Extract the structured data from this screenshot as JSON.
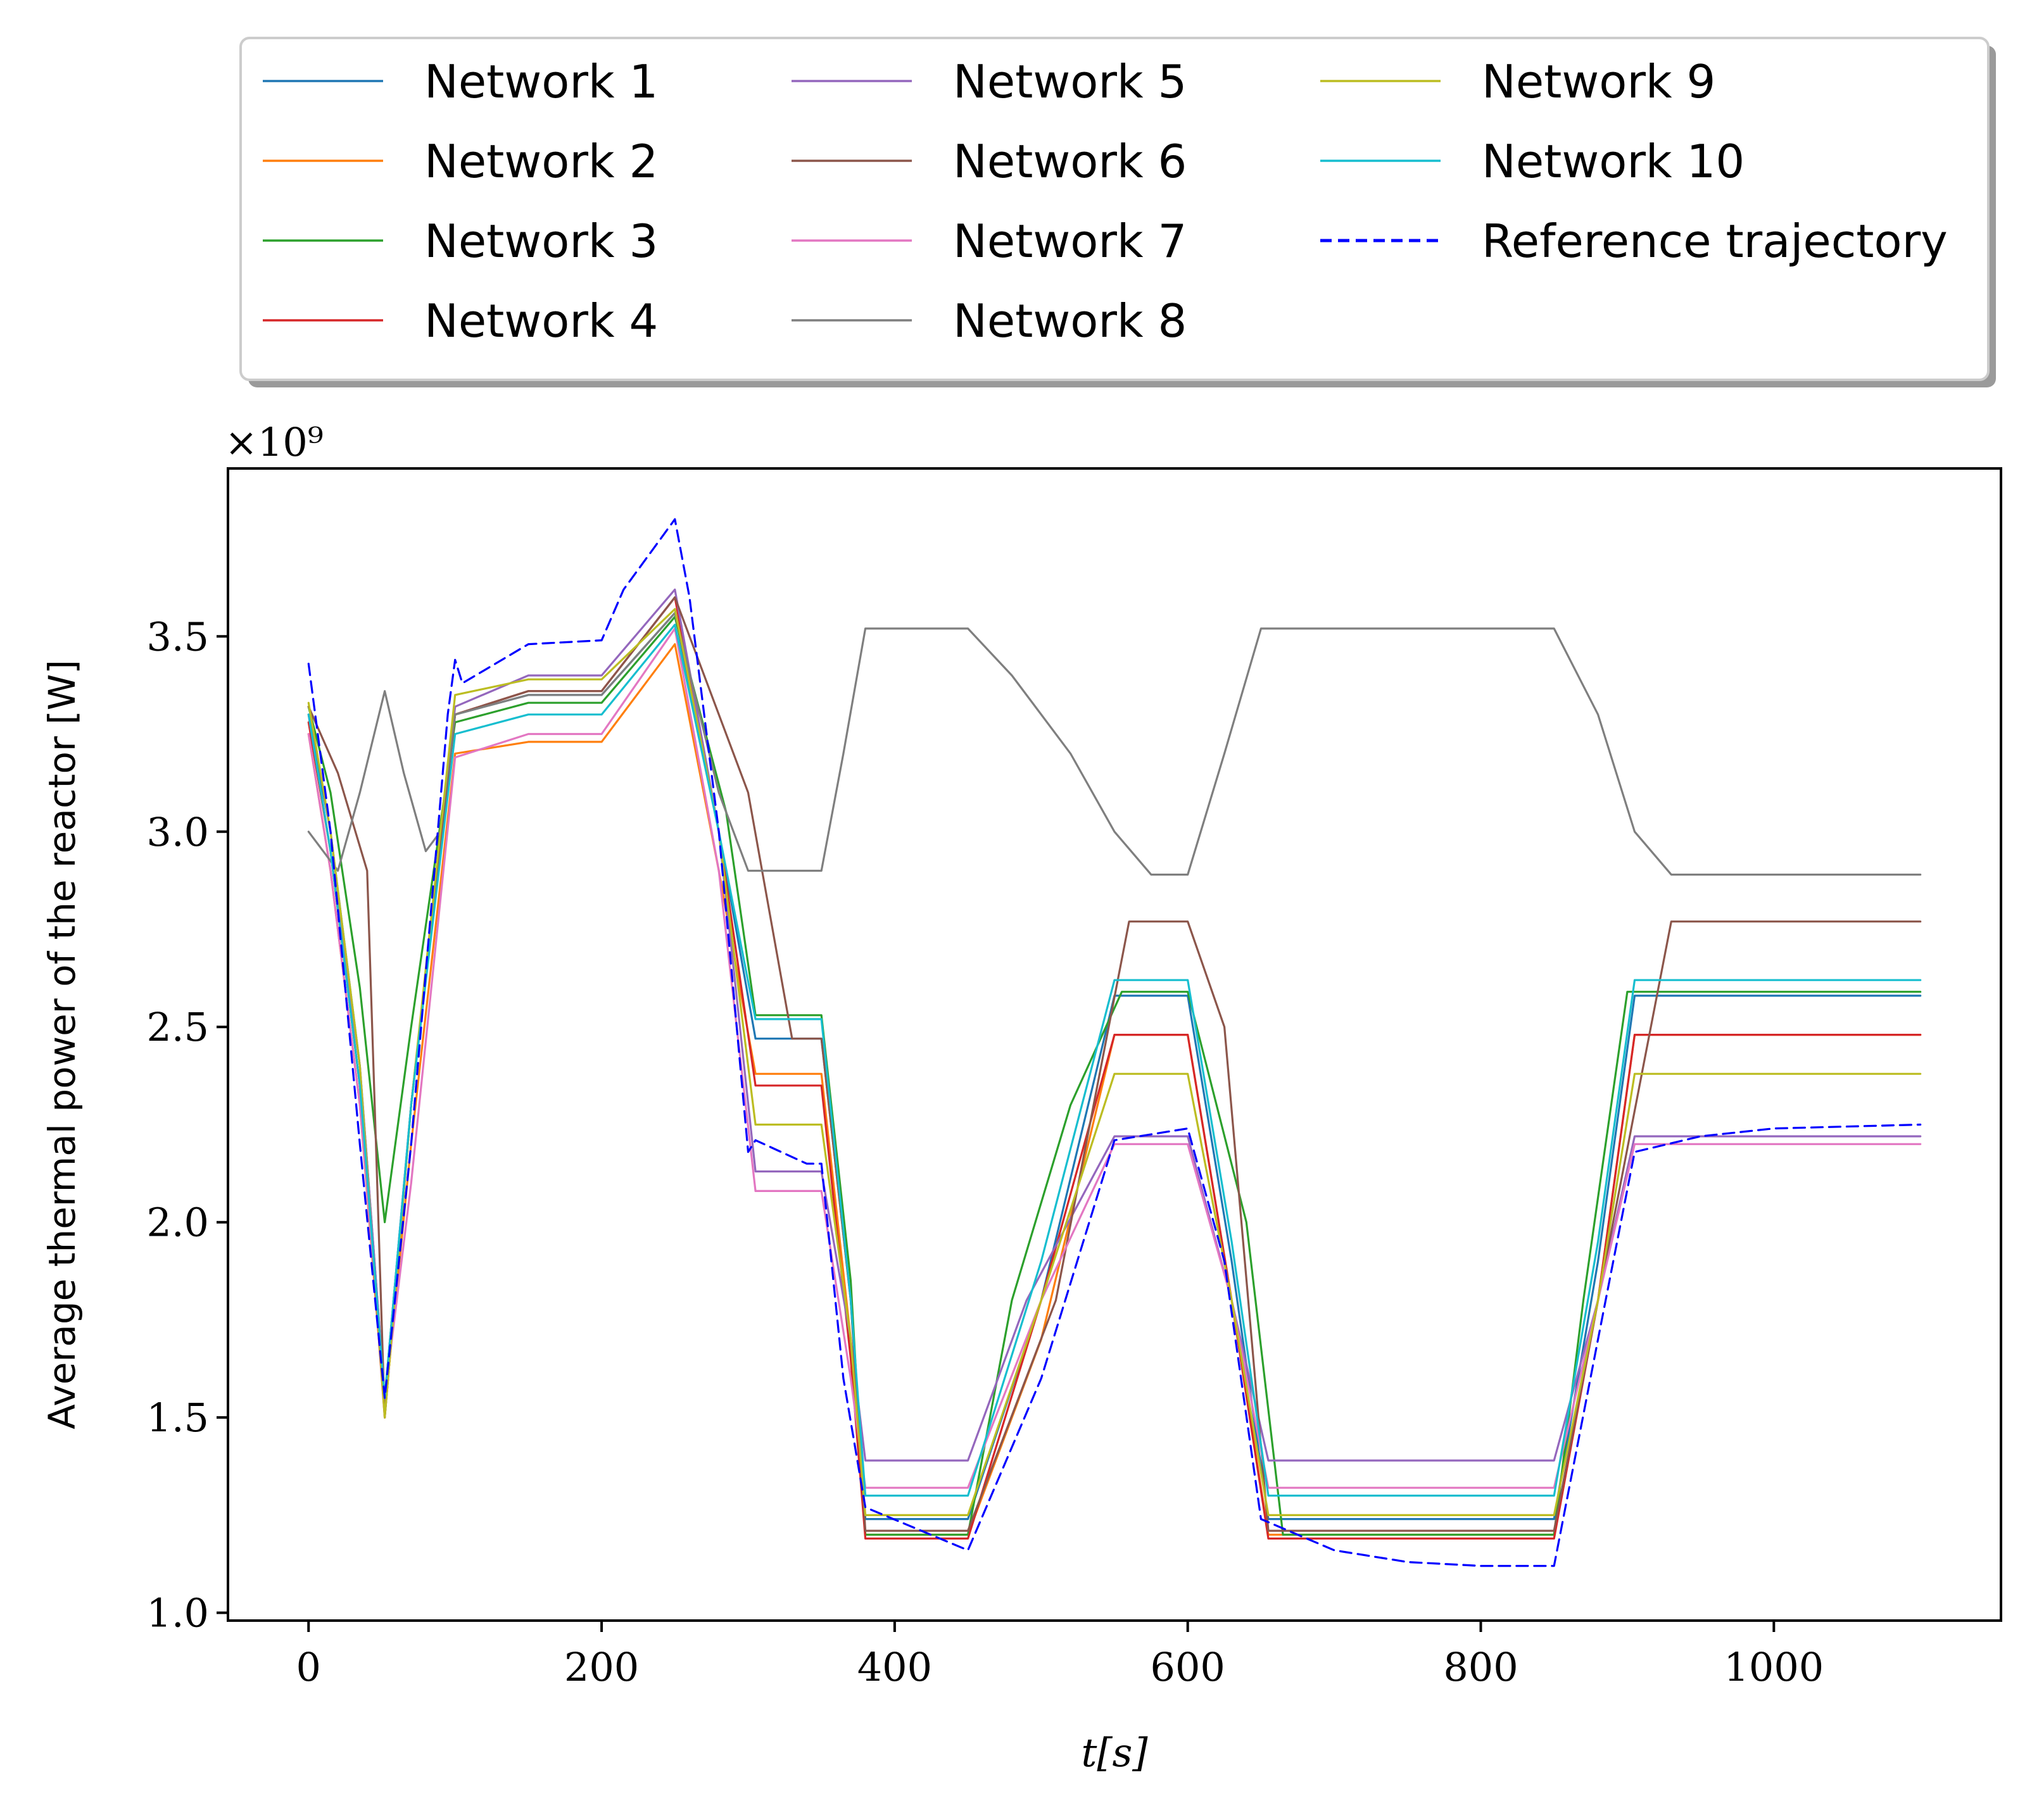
{
  "chart_data": {
    "type": "line",
    "xlabel": "t[s]",
    "ylabel": "Average thermal power of the reactor [W]",
    "y_offset_label": "×10⁹",
    "xlim": [
      -55,
      1155
    ],
    "ylim": [
      0.98,
      3.93
    ],
    "xticks": [
      0,
      200,
      400,
      600,
      800,
      1000
    ],
    "xtick_labels": [
      "0",
      "200",
      "400",
      "600",
      "800",
      "1000"
    ],
    "yticks": [
      1.0,
      1.5,
      2.0,
      2.5,
      3.0,
      3.5
    ],
    "ytick_labels": [
      "1.0",
      "1.5",
      "2.0",
      "2.5",
      "3.0",
      "3.5"
    ],
    "grid": false,
    "legend_position": "top, above plot, 3 columns",
    "series": [
      {
        "name": "Network 1",
        "color": "#1f77b4",
        "style": "solid",
        "points": [
          [
            0,
            3.3
          ],
          [
            15,
            3.0
          ],
          [
            35,
            2.4
          ],
          [
            52,
            1.55
          ],
          [
            70,
            2.3
          ],
          [
            100,
            3.3
          ],
          [
            150,
            3.35
          ],
          [
            200,
            3.35
          ],
          [
            250,
            3.56
          ],
          [
            280,
            3.0
          ],
          [
            305,
            2.47
          ],
          [
            350,
            2.47
          ],
          [
            370,
            1.8
          ],
          [
            380,
            1.24
          ],
          [
            450,
            1.24
          ],
          [
            500,
            1.8
          ],
          [
            550,
            2.58
          ],
          [
            600,
            2.58
          ],
          [
            630,
            1.9
          ],
          [
            655,
            1.24
          ],
          [
            850,
            1.24
          ],
          [
            880,
            1.9
          ],
          [
            905,
            2.58
          ],
          [
            1100,
            2.58
          ]
        ]
      },
      {
        "name": "Network 2",
        "color": "#ff7f0e",
        "style": "solid",
        "points": [
          [
            0,
            3.25
          ],
          [
            15,
            2.9
          ],
          [
            35,
            2.3
          ],
          [
            52,
            1.52
          ],
          [
            70,
            2.2
          ],
          [
            100,
            3.2
          ],
          [
            150,
            3.23
          ],
          [
            200,
            3.23
          ],
          [
            250,
            3.48
          ],
          [
            280,
            2.9
          ],
          [
            305,
            2.38
          ],
          [
            350,
            2.38
          ],
          [
            370,
            1.7
          ],
          [
            380,
            1.2
          ],
          [
            450,
            1.2
          ],
          [
            500,
            1.7
          ],
          [
            550,
            2.48
          ],
          [
            600,
            2.48
          ],
          [
            630,
            1.8
          ],
          [
            655,
            1.2
          ],
          [
            850,
            1.2
          ],
          [
            880,
            1.8
          ],
          [
            905,
            2.48
          ],
          [
            1100,
            2.48
          ]
        ]
      },
      {
        "name": "Network 3",
        "color": "#2ca02c",
        "style": "solid",
        "points": [
          [
            0,
            3.32
          ],
          [
            15,
            3.1
          ],
          [
            35,
            2.6
          ],
          [
            52,
            2.0
          ],
          [
            70,
            2.5
          ],
          [
            100,
            3.28
          ],
          [
            150,
            3.33
          ],
          [
            200,
            3.33
          ],
          [
            250,
            3.55
          ],
          [
            285,
            3.05
          ],
          [
            305,
            2.53
          ],
          [
            350,
            2.53
          ],
          [
            370,
            1.85
          ],
          [
            380,
            1.2
          ],
          [
            450,
            1.2
          ],
          [
            480,
            1.8
          ],
          [
            520,
            2.3
          ],
          [
            555,
            2.59
          ],
          [
            600,
            2.59
          ],
          [
            640,
            2.0
          ],
          [
            665,
            1.2
          ],
          [
            850,
            1.2
          ],
          [
            870,
            1.8
          ],
          [
            900,
            2.59
          ],
          [
            1100,
            2.59
          ]
        ]
      },
      {
        "name": "Network 4",
        "color": "#d62728",
        "style": "solid",
        "points": [
          [
            0,
            3.28
          ],
          [
            15,
            2.95
          ],
          [
            35,
            2.35
          ],
          [
            52,
            1.5
          ],
          [
            70,
            2.3
          ],
          [
            100,
            3.3
          ],
          [
            150,
            3.36
          ],
          [
            200,
            3.36
          ],
          [
            250,
            3.6
          ],
          [
            280,
            3.0
          ],
          [
            305,
            2.35
          ],
          [
            350,
            2.35
          ],
          [
            370,
            1.65
          ],
          [
            380,
            1.19
          ],
          [
            450,
            1.19
          ],
          [
            500,
            1.8
          ],
          [
            550,
            2.48
          ],
          [
            600,
            2.48
          ],
          [
            630,
            1.8
          ],
          [
            655,
            1.19
          ],
          [
            850,
            1.19
          ],
          [
            880,
            1.8
          ],
          [
            905,
            2.48
          ],
          [
            1100,
            2.48
          ]
        ]
      },
      {
        "name": "Network 5",
        "color": "#9467bd",
        "style": "solid",
        "points": [
          [
            0,
            3.3
          ],
          [
            15,
            2.95
          ],
          [
            35,
            2.4
          ],
          [
            52,
            1.55
          ],
          [
            70,
            2.3
          ],
          [
            100,
            3.32
          ],
          [
            150,
            3.4
          ],
          [
            200,
            3.4
          ],
          [
            250,
            3.62
          ],
          [
            280,
            3.0
          ],
          [
            305,
            2.13
          ],
          [
            350,
            2.13
          ],
          [
            370,
            1.7
          ],
          [
            380,
            1.39
          ],
          [
            450,
            1.39
          ],
          [
            490,
            1.8
          ],
          [
            550,
            2.22
          ],
          [
            600,
            2.22
          ],
          [
            630,
            1.8
          ],
          [
            655,
            1.39
          ],
          [
            850,
            1.39
          ],
          [
            880,
            1.8
          ],
          [
            905,
            2.22
          ],
          [
            1100,
            2.22
          ]
        ]
      },
      {
        "name": "Network 6",
        "color": "#8c564b",
        "style": "solid",
        "points": [
          [
            0,
            3.32
          ],
          [
            20,
            3.15
          ],
          [
            40,
            2.9
          ],
          [
            52,
            1.5
          ],
          [
            70,
            2.3
          ],
          [
            100,
            3.3
          ],
          [
            150,
            3.36
          ],
          [
            200,
            3.36
          ],
          [
            250,
            3.6
          ],
          [
            300,
            3.1
          ],
          [
            330,
            2.47
          ],
          [
            350,
            2.47
          ],
          [
            370,
            1.8
          ],
          [
            380,
            1.21
          ],
          [
            450,
            1.21
          ],
          [
            510,
            1.8
          ],
          [
            560,
            2.77
          ],
          [
            600,
            2.77
          ],
          [
            625,
            2.5
          ],
          [
            655,
            1.21
          ],
          [
            850,
            1.21
          ],
          [
            880,
            1.8
          ],
          [
            930,
            2.77
          ],
          [
            1100,
            2.77
          ]
        ]
      },
      {
        "name": "Network 7",
        "color": "#e377c2",
        "style": "solid",
        "points": [
          [
            0,
            3.25
          ],
          [
            15,
            2.9
          ],
          [
            35,
            2.3
          ],
          [
            52,
            1.55
          ],
          [
            70,
            2.1
          ],
          [
            100,
            3.19
          ],
          [
            150,
            3.25
          ],
          [
            200,
            3.25
          ],
          [
            250,
            3.52
          ],
          [
            280,
            2.9
          ],
          [
            305,
            2.08
          ],
          [
            350,
            2.08
          ],
          [
            370,
            1.6
          ],
          [
            380,
            1.32
          ],
          [
            450,
            1.32
          ],
          [
            500,
            1.8
          ],
          [
            550,
            2.2
          ],
          [
            600,
            2.2
          ],
          [
            630,
            1.8
          ],
          [
            655,
            1.32
          ],
          [
            850,
            1.32
          ],
          [
            880,
            1.8
          ],
          [
            905,
            2.2
          ],
          [
            1100,
            2.2
          ]
        ]
      },
      {
        "name": "Network 8",
        "color": "#7f7f7f",
        "style": "solid",
        "points": [
          [
            0,
            3.0
          ],
          [
            20,
            2.9
          ],
          [
            35,
            3.1
          ],
          [
            52,
            3.36
          ],
          [
            65,
            3.15
          ],
          [
            80,
            2.95
          ],
          [
            90,
            3.0
          ],
          [
            100,
            3.3
          ],
          [
            150,
            3.35
          ],
          [
            200,
            3.35
          ],
          [
            250,
            3.56
          ],
          [
            280,
            3.1
          ],
          [
            300,
            2.9
          ],
          [
            350,
            2.9
          ],
          [
            365,
            3.2
          ],
          [
            380,
            3.52
          ],
          [
            450,
            3.52
          ],
          [
            480,
            3.4
          ],
          [
            520,
            3.2
          ],
          [
            550,
            3.0
          ],
          [
            575,
            2.89
          ],
          [
            600,
            2.89
          ],
          [
            625,
            3.2
          ],
          [
            650,
            3.52
          ],
          [
            850,
            3.52
          ],
          [
            880,
            3.3
          ],
          [
            905,
            3.0
          ],
          [
            930,
            2.89
          ],
          [
            1100,
            2.89
          ]
        ]
      },
      {
        "name": "Network 9",
        "color": "#bcbd22",
        "style": "solid",
        "points": [
          [
            0,
            3.33
          ],
          [
            15,
            3.0
          ],
          [
            35,
            2.4
          ],
          [
            52,
            1.5
          ],
          [
            70,
            2.3
          ],
          [
            100,
            3.35
          ],
          [
            150,
            3.39
          ],
          [
            200,
            3.39
          ],
          [
            250,
            3.57
          ],
          [
            280,
            3.0
          ],
          [
            305,
            2.25
          ],
          [
            350,
            2.25
          ],
          [
            370,
            1.7
          ],
          [
            380,
            1.25
          ],
          [
            450,
            1.25
          ],
          [
            500,
            1.8
          ],
          [
            550,
            2.38
          ],
          [
            600,
            2.38
          ],
          [
            630,
            1.8
          ],
          [
            655,
            1.25
          ],
          [
            850,
            1.25
          ],
          [
            880,
            1.8
          ],
          [
            905,
            2.38
          ],
          [
            1100,
            2.38
          ]
        ]
      },
      {
        "name": "Network 10",
        "color": "#17becf",
        "style": "solid",
        "points": [
          [
            0,
            3.3
          ],
          [
            15,
            2.95
          ],
          [
            35,
            2.35
          ],
          [
            52,
            1.55
          ],
          [
            70,
            2.3
          ],
          [
            100,
            3.25
          ],
          [
            150,
            3.3
          ],
          [
            200,
            3.3
          ],
          [
            250,
            3.53
          ],
          [
            280,
            3.0
          ],
          [
            305,
            2.52
          ],
          [
            350,
            2.52
          ],
          [
            370,
            1.8
          ],
          [
            380,
            1.3
          ],
          [
            450,
            1.3
          ],
          [
            500,
            1.9
          ],
          [
            550,
            2.62
          ],
          [
            600,
            2.62
          ],
          [
            630,
            1.95
          ],
          [
            655,
            1.3
          ],
          [
            850,
            1.3
          ],
          [
            880,
            1.95
          ],
          [
            905,
            2.62
          ],
          [
            1100,
            2.62
          ]
        ]
      },
      {
        "name": "Reference trajectory",
        "color": "#0000ff",
        "style": "dashed",
        "points": [
          [
            0,
            3.43
          ],
          [
            15,
            3.0
          ],
          [
            35,
            2.2
          ],
          [
            52,
            1.55
          ],
          [
            70,
            2.2
          ],
          [
            95,
            3.3
          ],
          [
            100,
            3.44
          ],
          [
            105,
            3.38
          ],
          [
            150,
            3.48
          ],
          [
            200,
            3.49
          ],
          [
            215,
            3.62
          ],
          [
            250,
            3.8
          ],
          [
            260,
            3.6
          ],
          [
            280,
            3.0
          ],
          [
            300,
            2.18
          ],
          [
            305,
            2.21
          ],
          [
            340,
            2.15
          ],
          [
            350,
            2.15
          ],
          [
            365,
            1.6
          ],
          [
            380,
            1.27
          ],
          [
            450,
            1.16
          ],
          [
            500,
            1.6
          ],
          [
            550,
            2.21
          ],
          [
            600,
            2.24
          ],
          [
            625,
            1.9
          ],
          [
            650,
            1.24
          ],
          [
            700,
            1.16
          ],
          [
            750,
            1.13
          ],
          [
            800,
            1.12
          ],
          [
            850,
            1.12
          ],
          [
            880,
            1.7
          ],
          [
            905,
            2.18
          ],
          [
            950,
            2.22
          ],
          [
            1000,
            2.24
          ],
          [
            1100,
            2.25
          ]
        ]
      }
    ]
  }
}
